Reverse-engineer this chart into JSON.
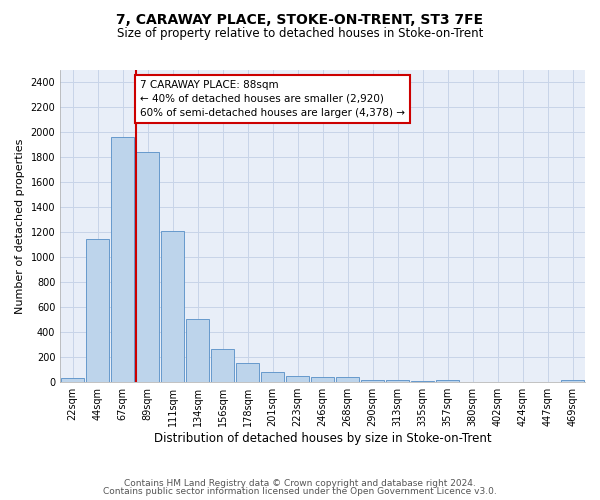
{
  "title": "7, CARAWAY PLACE, STOKE-ON-TRENT, ST3 7FE",
  "subtitle": "Size of property relative to detached houses in Stoke-on-Trent",
  "xlabel": "Distribution of detached houses by size in Stoke-on-Trent",
  "ylabel": "Number of detached properties",
  "bin_labels": [
    "22sqm",
    "44sqm",
    "67sqm",
    "89sqm",
    "111sqm",
    "134sqm",
    "156sqm",
    "178sqm",
    "201sqm",
    "223sqm",
    "246sqm",
    "268sqm",
    "290sqm",
    "313sqm",
    "335sqm",
    "357sqm",
    "380sqm",
    "402sqm",
    "424sqm",
    "447sqm",
    "469sqm"
  ],
  "bar_values": [
    30,
    1150,
    1960,
    1840,
    1210,
    510,
    265,
    155,
    80,
    50,
    45,
    40,
    20,
    20,
    13,
    20,
    0,
    0,
    0,
    0,
    20
  ],
  "bar_color": "#bdd4eb",
  "bar_edgecolor": "#6699cc",
  "ylim": [
    0,
    2500
  ],
  "yticks": [
    0,
    200,
    400,
    600,
    800,
    1000,
    1200,
    1400,
    1600,
    1800,
    2000,
    2200,
    2400
  ],
  "vline_color": "#cc0000",
  "annotation_box_color": "#cc0000",
  "property_line_label": "7 CARAWAY PLACE: 88sqm",
  "annotation_line1": "← 40% of detached houses are smaller (2,920)",
  "annotation_line2": "60% of semi-detached houses are larger (4,378) →",
  "grid_color": "#c8d4e8",
  "background_color": "#e8eef8",
  "footnote1": "Contains HM Land Registry data © Crown copyright and database right 2024.",
  "footnote2": "Contains public sector information licensed under the Open Government Licence v3.0.",
  "title_fontsize": 10,
  "subtitle_fontsize": 8.5,
  "xlabel_fontsize": 8.5,
  "ylabel_fontsize": 8,
  "tick_fontsize": 7,
  "footnote_fontsize": 6.5
}
